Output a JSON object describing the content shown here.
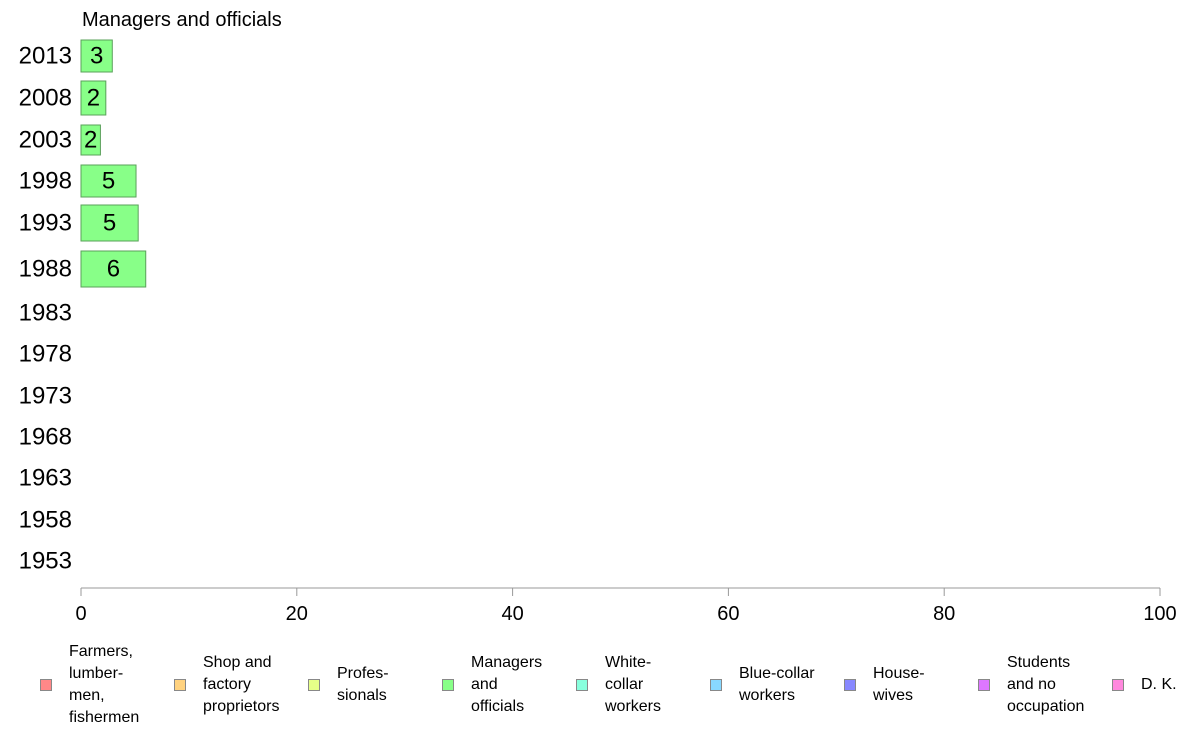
{
  "chart_data": {
    "type": "bar",
    "orientation": "horizontal",
    "title": "Managers and officials",
    "categories": [
      "2013",
      "2008",
      "2003",
      "1998",
      "1993",
      "1988",
      "1983",
      "1978",
      "1973",
      "1968",
      "1963",
      "1958",
      "1953"
    ],
    "series": [
      {
        "name": "Managers and officials",
        "color": "#88ff88",
        "values": [
          2.9,
          2.3,
          1.8,
          5.1,
          5.3,
          6.0,
          null,
          null,
          null,
          null,
          null,
          null,
          null
        ],
        "labels": [
          "3",
          "2",
          "2",
          "5",
          "5",
          "6",
          "",
          "",
          "",
          "",
          "",
          "",
          ""
        ]
      }
    ],
    "xlim": [
      0,
      100
    ],
    "xticks": [
      "0",
      "20",
      "40",
      "60",
      "80",
      "100"
    ],
    "grid": false,
    "legend_position": "bottom"
  },
  "legend": {
    "items": [
      {
        "label": "Farmers,\nlumber-\nmen,\nfishermen",
        "color": "#ff8888"
      },
      {
        "label": "Shop and\nfactory\nproprietors",
        "color": "#ffd27f"
      },
      {
        "label": "Profes-\nsionals",
        "color": "#e6ff88"
      },
      {
        "label": "Managers\nand\nofficials",
        "color": "#88ff88"
      },
      {
        "label": "White-\ncollar\nworkers",
        "color": "#88ffdd"
      },
      {
        "label": "Blue-collar\nworkers",
        "color": "#88d8ff"
      },
      {
        "label": "House-\nwives",
        "color": "#8888ff"
      },
      {
        "label": "Students\nand no\noccupation",
        "color": "#dd77ff"
      },
      {
        "label": "D. K.",
        "color": "#ff88dd"
      }
    ]
  }
}
